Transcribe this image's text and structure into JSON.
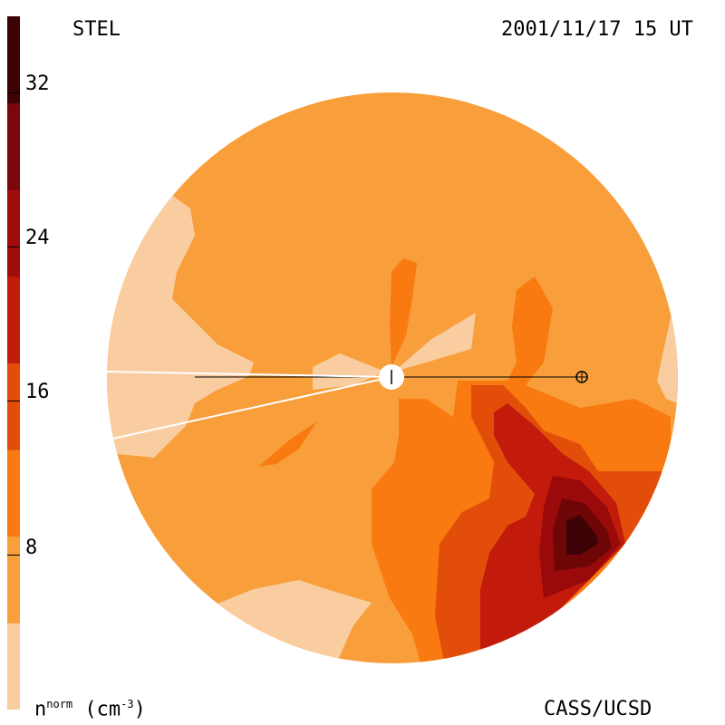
{
  "header": {
    "instrument": "STEL",
    "timestamp": "2001/11/17 15 UT"
  },
  "footer": {
    "credit": "CASS/UCSD"
  },
  "colorbar": {
    "label_base": "n",
    "label_sup": "norm",
    "label_unit": "(cm",
    "label_unit_sup": "-3",
    "label_close": ")",
    "ticks": [
      "32",
      "24",
      "16",
      "8"
    ],
    "bands": [
      "#f9cda0",
      "#f89f3c",
      "#f97a10",
      "#e24e0a",
      "#c21a0b",
      "#a00c0c",
      "#7a0709",
      "#3c0205"
    ]
  },
  "palette": {
    "level0": "#f9cda0",
    "level1": "#f89f3c",
    "level2": "#f97a10",
    "level3": "#e24e0a",
    "level4": "#c21a0b",
    "level5": "#9a0a0b",
    "level6": "#6e0507",
    "level7": "#3c0205"
  }
}
